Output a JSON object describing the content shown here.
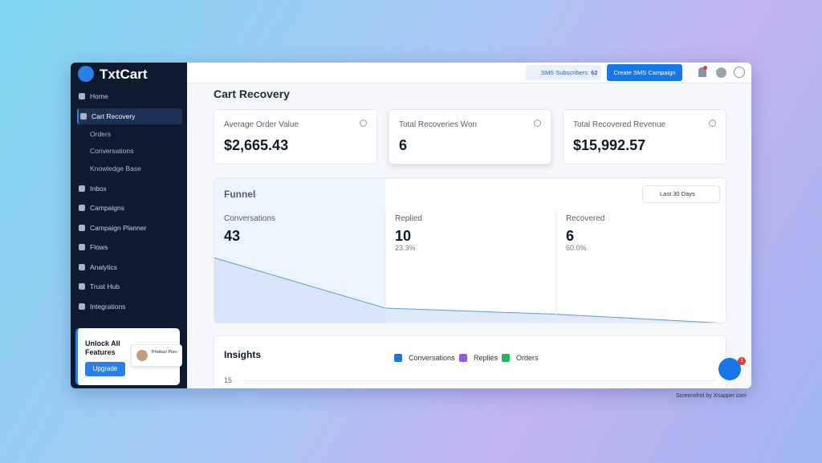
{
  "brand": "TxtCart",
  "sidebar": {
    "items": [
      "Home",
      "Cart Recovery",
      "Orders",
      "Conversations",
      "Knowledge Base",
      "Inbox",
      "Campaigns",
      "Campaign Planner",
      "Flows",
      "Analytics",
      "Trust Hub",
      "Integrations"
    ],
    "promo": {
      "title": "Unlock All Features",
      "button": "Upgrade",
      "preview": "Product Purc"
    }
  },
  "topbar": {
    "subscribers_label": "SMS Subscribers:",
    "subscribers_count": "62",
    "create_button": "Create SMS Campaign"
  },
  "page_title": "Cart Recovery",
  "cards": [
    {
      "label": "Average Order Value",
      "value": "$2,665.43"
    },
    {
      "label": "Total Recoveries Won",
      "value": "6"
    },
    {
      "label": "Total Recovered Revenue",
      "value": "$15,992.57"
    }
  ],
  "funnel": {
    "title": "Funnel",
    "range": "Last 30 Days",
    "stages": [
      {
        "label": "Conversations",
        "value": 43
      },
      {
        "label": "Replied",
        "value": 10,
        "rate": "23.3%"
      },
      {
        "label": "Recovered",
        "value": 6,
        "rate": "60.0%"
      }
    ]
  },
  "insights": {
    "title": "Insights",
    "legend": [
      "Conversations",
      "Replies",
      "Orders"
    ],
    "ytick": "15"
  },
  "chat_badge": "1",
  "footer": "Screenshot by Xnapper.com"
}
